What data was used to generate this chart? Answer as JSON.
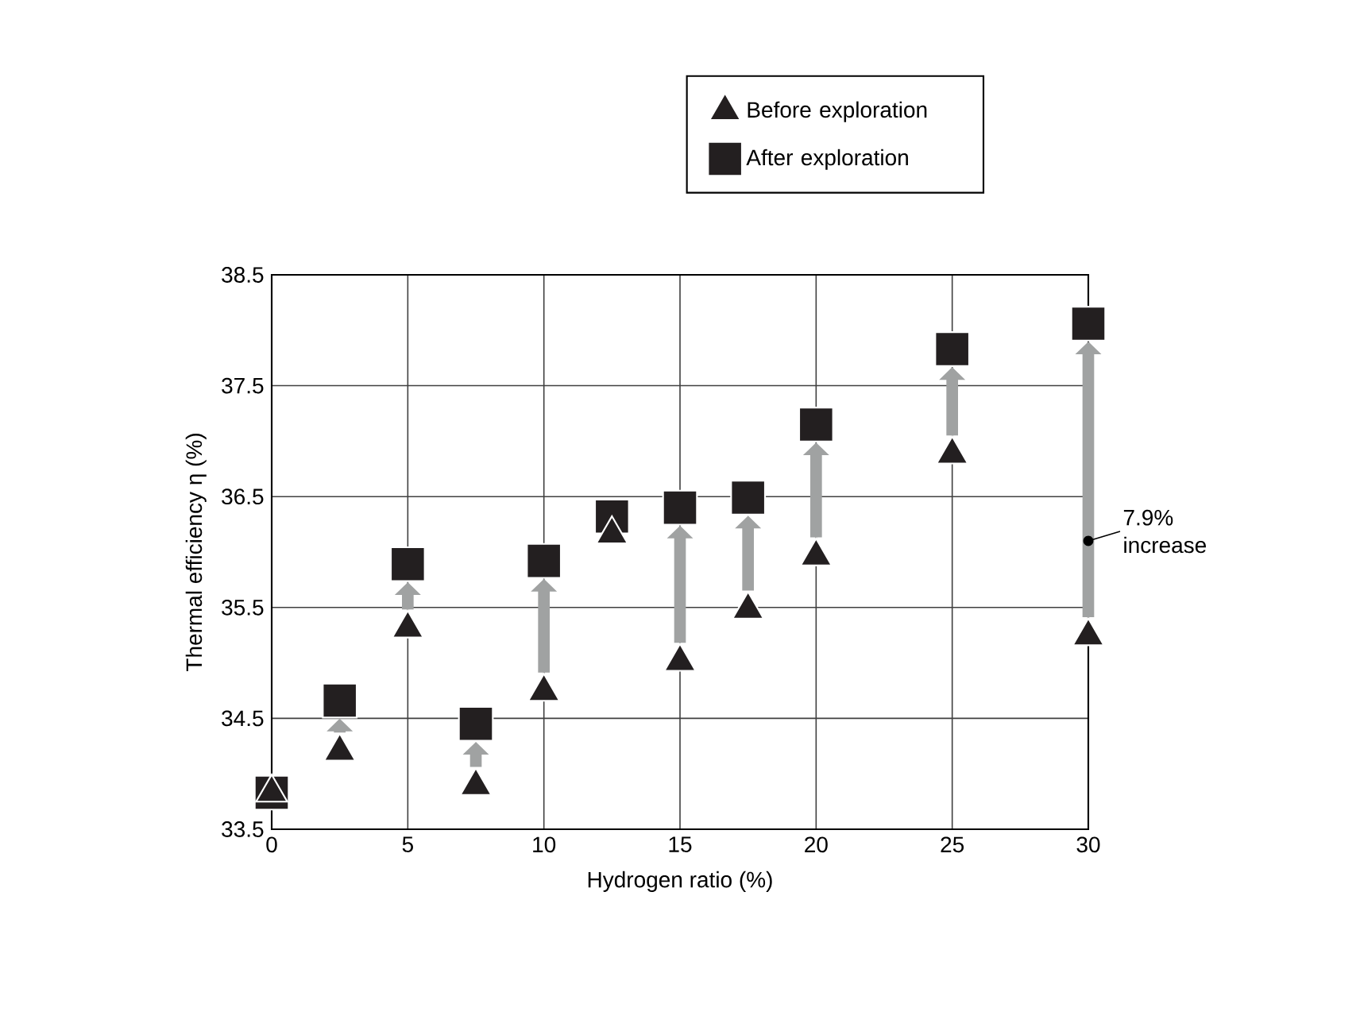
{
  "chart_data": {
    "type": "scatter",
    "xlabel": "Hydrogen ratio (%)",
    "ylabel": "Thermal efficiency η (%)",
    "x": [
      0,
      2.5,
      5,
      7.5,
      10,
      12.5,
      15,
      17.5,
      20,
      25,
      30
    ],
    "series": [
      {
        "name": "After exploration",
        "color": "#231f20",
        "marker": "square",
        "values": [
          33.83,
          34.66,
          35.89,
          34.45,
          35.92,
          36.32,
          36.4,
          36.49,
          37.15,
          37.83,
          38.06
        ]
      },
      {
        "name": "Before exploration",
        "color": "#231f20",
        "marker": "triangle",
        "values": [
          33.83,
          34.2,
          35.31,
          33.89,
          34.74,
          36.16,
          35.01,
          35.48,
          35.96,
          36.88,
          35.24
        ]
      }
    ],
    "xlim": [
      0,
      30
    ],
    "xticks": [
      0,
      5,
      10,
      15,
      20,
      25,
      30
    ],
    "ylim": [
      33.5,
      38.5
    ],
    "yticks": [
      33.5,
      34.5,
      35.5,
      36.5,
      37.5,
      38.5
    ],
    "grid": true,
    "legend": "top",
    "annotations": [
      {
        "text": "7.9% increase",
        "x": 30,
        "y": 36.1
      }
    ]
  }
}
